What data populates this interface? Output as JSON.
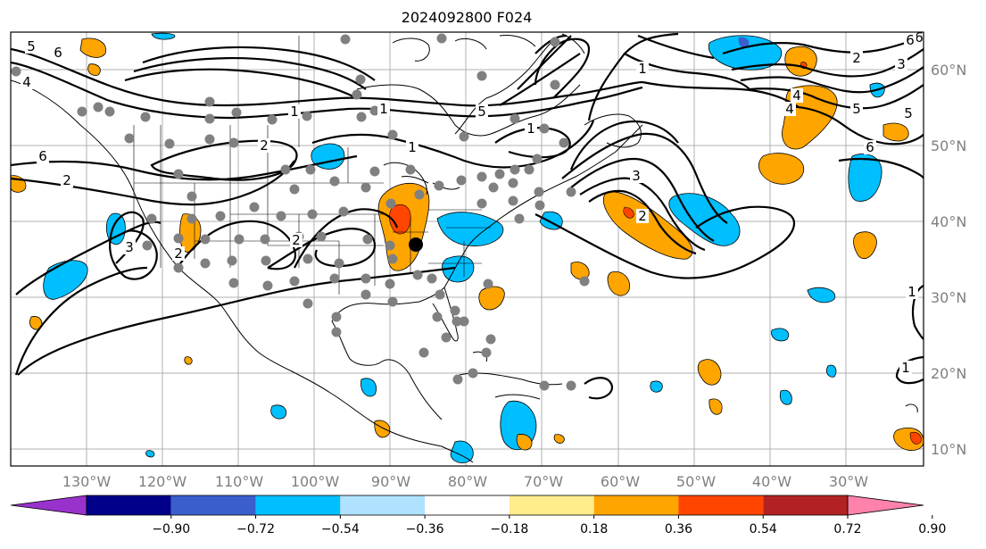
{
  "title": "2024092800 F024",
  "longitude_labels": [
    "130°W",
    "120°W",
    "110°W",
    "100°W",
    "90°W",
    "80°W",
    "70°W",
    "60°W",
    "50°W",
    "40°W",
    "30°W"
  ],
  "latitude_labels": [
    "60°N",
    "50°N",
    "40°N",
    "30°N",
    "20°N",
    "10°N"
  ],
  "colorbar": {
    "tick_labels": [
      "−0.90",
      "−0.72",
      "−0.54",
      "−0.36",
      "−0.18",
      "0.18",
      "0.36",
      "0.54",
      "0.72",
      "0.90"
    ],
    "colors": [
      "#9932cc",
      "#00008b",
      "#3a5fcd",
      "#00bfff",
      "#b0e2ff",
      "#ffffff",
      "#ffec8b",
      "#ffa500",
      "#ff4500",
      "#b22222",
      "#ff82ab"
    ]
  },
  "contour_labels": [
    "5",
    "6",
    "4",
    "2",
    "1",
    "2",
    "1",
    "6",
    "2",
    "2",
    "1",
    "1",
    "2",
    "3",
    "2",
    "6",
    "5",
    "4",
    "1",
    "6",
    "3",
    "5",
    "4",
    "6",
    "3",
    "1",
    "5",
    "1"
  ],
  "colors": {
    "map_frame": "#000000",
    "grid": "#b0b0b0",
    "gray_dots": "#808080",
    "positive_fill": "#ffa500",
    "negative_fill": "#00bfff"
  }
}
